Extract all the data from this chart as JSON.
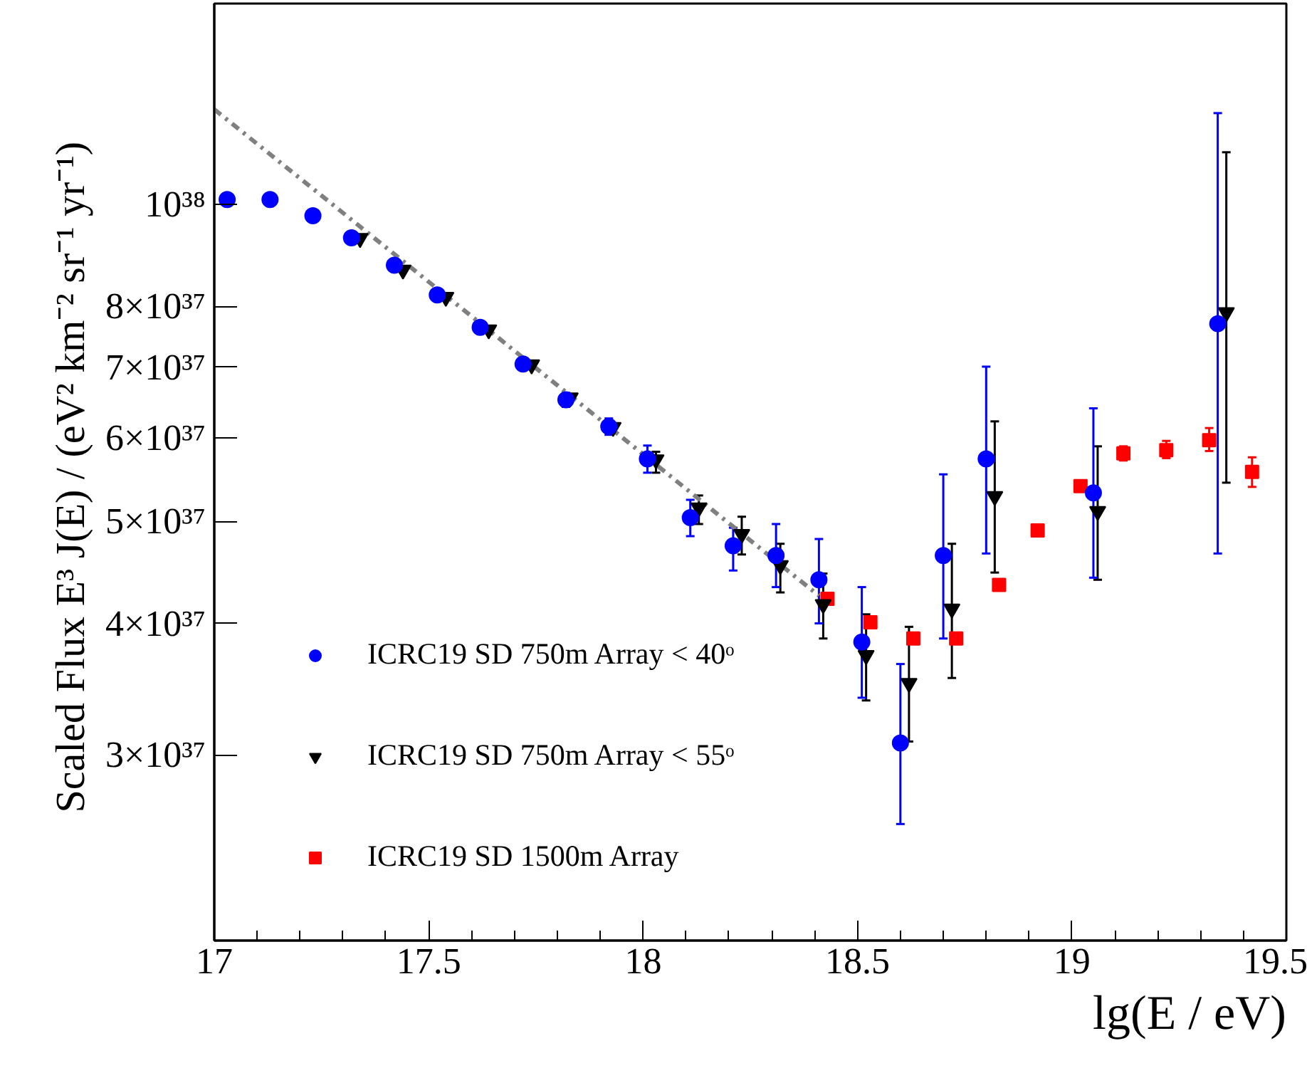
{
  "chart_data": {
    "type": "scatter",
    "xlabel": "lg(E / eV)",
    "ylabel": "Scaled Flux  E³ J(E) / (eV² km⁻² sr⁻¹ yr⁻¹)",
    "log": "y",
    "grid": false,
    "legend": "bottom left",
    "xlim": [
      17,
      19.5
    ],
    "ylim": [
      2e+37,
      1.55e+38
    ],
    "xticks": [
      17,
      {
        "value": 17.1,
        "label": null
      },
      {
        "value": 17.2,
        "label": null
      },
      {
        "value": 17.3,
        "label": null
      },
      {
        "value": 17.4,
        "label": null
      },
      17.5,
      {
        "value": 17.6,
        "label": null
      },
      {
        "value": 17.7,
        "label": null
      },
      {
        "value": 17.8,
        "label": null
      },
      {
        "value": 17.9,
        "label": null
      },
      18,
      {
        "value": 18.1,
        "label": null
      },
      {
        "value": 18.2,
        "label": null
      },
      {
        "value": 18.3,
        "label": null
      },
      {
        "value": 18.4,
        "label": null
      },
      18.5,
      {
        "value": 18.6,
        "label": null
      },
      {
        "value": 18.7,
        "label": null
      },
      {
        "value": 18.8,
        "label": null
      },
      {
        "value": 18.9,
        "label": null
      },
      19,
      {
        "value": 19.1,
        "label": null
      },
      {
        "value": 19.2,
        "label": null
      },
      {
        "value": 19.3,
        "label": null
      },
      {
        "value": 19.4,
        "label": null
      },
      19.5
    ],
    "yticks": [
      {
        "value": 3e+37,
        "label": "3×10³⁷"
      },
      {
        "value": 4e+37,
        "label": "4×10³⁷"
      },
      {
        "value": 5e+37,
        "label": "5×10³⁷"
      },
      {
        "value": 6e+37,
        "label": "6×10³⁷"
      },
      {
        "value": 7e+37,
        "label": "7×10³⁷"
      },
      {
        "value": 8e+37,
        "label": "8×10³⁷"
      },
      {
        "value": 1e+38,
        "label": "10³⁸"
      }
    ],
    "series": [
      {
        "type": "scatter",
        "name": "ICRC19 SD 750m Array < 40ᵒ",
        "color": "#0000ff",
        "marker": "circle",
        "x": [
          17.03,
          17.13,
          17.23,
          17.32,
          17.42,
          17.52,
          17.62,
          17.72,
          17.82,
          17.92,
          18.01,
          18.11,
          18.21,
          18.31,
          18.41,
          18.51,
          18.6,
          18.7,
          18.8,
          19.05,
          19.34
        ],
        "values": [
          1.01e+38,
          1.01e+38,
          9.75e+37,
          9.29e+37,
          8.75e+37,
          8.2e+37,
          7.64e+37,
          7.05e+37,
          6.52e+37,
          6.15e+37,
          5.73e+37,
          5.04e+37,
          4.74e+37,
          4.64e+37,
          4.4e+37,
          3.84e+37,
          3.08e+37,
          4.64e+37,
          5.73e+37,
          5.32e+37,
          7.7e+37
        ],
        "errors": [
          null,
          null,
          null,
          null,
          null,
          null,
          null,
          null,
          [
            6.42e+37,
            6.62e+37
          ],
          [
            6.04e+37,
            6.26e+37
          ],
          [
            5.56e+37,
            5.9e+37
          ],
          [
            4.84e+37,
            5.24e+37
          ],
          [
            4.49e+37,
            4.93e+37
          ],
          [
            4.33e+37,
            4.97e+37
          ],
          [
            4e+37,
            4.81e+37
          ],
          [
            3.4e+37,
            4.33e+37
          ],
          [
            2.58e+37,
            3.66e+37
          ],
          [
            3.87e+37,
            5.54e+37
          ],
          [
            4.66e+37,
            7.01e+37
          ],
          [
            4.42e+37,
            6.4e+37
          ],
          [
            4.66e+37,
            1.22e+38
          ]
        ]
      },
      {
        "type": "scatter",
        "name": "ICRC19 SD 750m Array < 55ᵒ",
        "color": "#000000",
        "marker": "triangle",
        "x": [
          17.34,
          17.44,
          17.54,
          17.64,
          17.74,
          17.83,
          17.93,
          18.03,
          18.13,
          18.23,
          18.32,
          18.42,
          18.52,
          18.62,
          18.72,
          18.82,
          19.06,
          19.36
        ],
        "values": [
          9.28e+37,
          8.66e+37,
          8.16e+37,
          7.6e+37,
          7.04e+37,
          6.55e+37,
          6.14e+37,
          5.72e+37,
          5.15e+37,
          4.86e+37,
          4.54e+37,
          4.17e+37,
          3.73e+37,
          3.51e+37,
          4.13e+37,
          5.28e+37,
          5.11e+37,
          7.89e+37
        ],
        "errors": [
          null,
          null,
          null,
          null,
          null,
          null,
          null,
          [
            5.56e+37,
            5.82e+37
          ],
          [
            4.97e+37,
            5.29e+37
          ],
          [
            4.65e+37,
            5.05e+37
          ],
          [
            4.28e+37,
            4.76e+37
          ],
          [
            3.87e+37,
            4.46e+37
          ],
          [
            3.38e+37,
            4.08e+37
          ],
          [
            3.09e+37,
            3.97e+37
          ],
          [
            3.55e+37,
            4.76e+37
          ],
          [
            4.47e+37,
            6.22e+37
          ],
          [
            4.4e+37,
            5.89e+37
          ],
          [
            5.44e+37,
            1.12e+38
          ]
        ]
      },
      {
        "type": "scatter",
        "name": "ICRC19 SD 1500m Array",
        "color": "#ff0000",
        "marker": "square",
        "x": [
          18.43,
          18.53,
          18.63,
          18.73,
          18.83,
          18.92,
          19.02,
          19.12,
          19.22,
          19.32,
          19.42
        ],
        "values": [
          4.22e+37,
          4.01e+37,
          3.87e+37,
          3.87e+37,
          4.35e+37,
          4.9e+37,
          5.4e+37,
          5.8e+37,
          5.84e+37,
          5.97e+37,
          5.57e+37
        ],
        "errors": [
          null,
          null,
          null,
          null,
          null,
          null,
          null,
          [
            5.71e+37,
            5.89e+37
          ],
          [
            5.74e+37,
            5.96e+37
          ],
          [
            5.83e+37,
            6.13e+37
          ],
          [
            5.39e+37,
            5.75e+37
          ]
        ]
      },
      {
        "type": "line",
        "color": "#808080",
        "line_style": "dashdot",
        "x": [
          17,
          18.41
        ],
        "values": [
          1.23e+38,
          4.25e+37
        ]
      }
    ]
  }
}
